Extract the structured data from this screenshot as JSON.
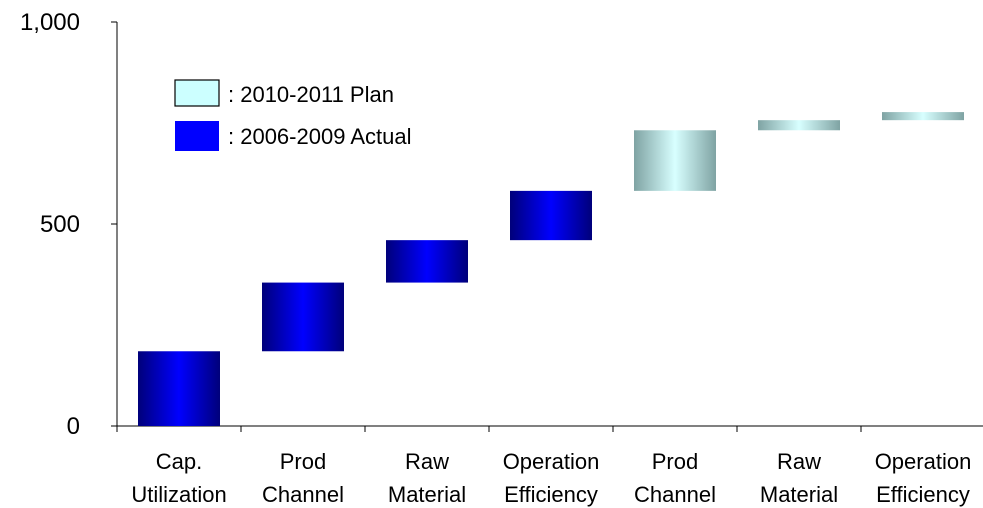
{
  "chart_data": {
    "type": "waterfall",
    "ylim": [
      0,
      1000
    ],
    "y_ticks": [
      0,
      500,
      1000
    ],
    "y_tick_labels": [
      "0",
      "500",
      "1,000"
    ],
    "grid": false,
    "legend_position": "top-left",
    "legend": [
      {
        "key": "plan",
        "label": ": 2010-2011 Plan"
      },
      {
        "key": "actual",
        "label": ": 2006-2009 Actual"
      }
    ],
    "categories": [
      {
        "lines": [
          "Cap.",
          "Utilization"
        ],
        "start": 0,
        "end": 185,
        "series": "actual"
      },
      {
        "lines": [
          "Prod",
          "Channel"
        ],
        "start": 185,
        "end": 355,
        "series": "actual"
      },
      {
        "lines": [
          "Raw",
          "Material"
        ],
        "start": 355,
        "end": 460,
        "series": "actual"
      },
      {
        "lines": [
          "Operation",
          "Efficiency"
        ],
        "start": 460,
        "end": 582,
        "series": "actual"
      },
      {
        "lines": [
          "Prod",
          "Channel"
        ],
        "start": 582,
        "end": 732,
        "series": "plan"
      },
      {
        "lines": [
          "Raw",
          "Material"
        ],
        "start": 732,
        "end": 757,
        "series": "plan"
      },
      {
        "lines": [
          "Operation",
          "Efficiency"
        ],
        "start": 757,
        "end": 777,
        "series": "plan"
      }
    ],
    "colors": {
      "actual_edge": "#00007a",
      "actual_mid": "#0000ff",
      "plan_edge": "#7fa3a3",
      "plan_mid": "#d8ffff",
      "legend_plan": "#ccffff",
      "legend_actual": "#0000ff",
      "axis": "#000000"
    }
  }
}
